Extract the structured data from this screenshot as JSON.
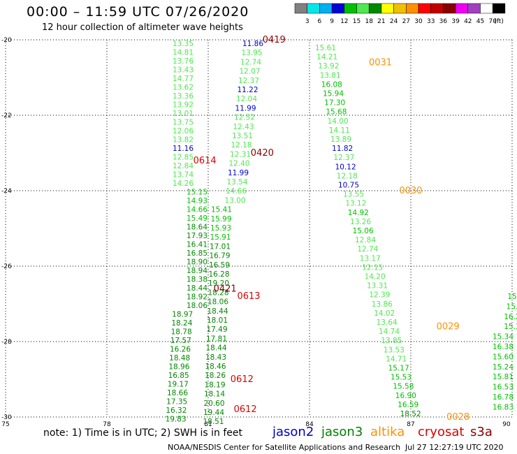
{
  "header": {
    "title": "00:00 – 11:59 UTC 07/26/2020",
    "subtitle": "12 hour collection of altimeter wave heights"
  },
  "color_scale": {
    "colors": [
      "#808080",
      "#00e8e8",
      "#00b0f0",
      "#0000d8",
      "#00c000",
      "#50e850",
      "#008800",
      "#ffff00",
      "#f0c000",
      "#ff9000",
      "#ff0000",
      "#c00000",
      "#880000",
      "#f000f0",
      "#a040c0",
      "#ffffff",
      "#000000"
    ],
    "labels": [
      "3",
      "6",
      "9",
      "12",
      "15",
      "18",
      "21",
      "24",
      "27",
      "30",
      "33",
      "36",
      "39",
      "42",
      "45",
      "70"
    ],
    "unit": "(ft)"
  },
  "legend": {
    "jason2": {
      "label": "jason2",
      "color": "#0000cc"
    },
    "jason3": {
      "label": "jason3",
      "color": "#008000"
    },
    "altika": {
      "label": "altika",
      "color": "#ff9000"
    },
    "cryosat": {
      "label": "cryosat",
      "color": "#dd0000"
    },
    "s3a": {
      "label": "s3a",
      "color": "#880000"
    }
  },
  "note": "note: 1) Time is in UTC; 2) SWH is in feet",
  "footer": {
    "credit": "NOAA/NESDIS Center for Satellite Applications and Research",
    "generated": "Jul 27 12:27:19 UTC 2020"
  },
  "chart_data": {
    "type": "scatter",
    "title": "12 hour collection of altimeter wave heights",
    "x_ticks": [
      "75",
      "78",
      "81",
      "84",
      "87",
      "90"
    ],
    "y_ticks": [
      "-20",
      "-22",
      "-24",
      "-26",
      "-28",
      "-30"
    ],
    "xlim": [
      75,
      90
    ],
    "ylim": [
      -30,
      -20
    ],
    "grid": true,
    "colors": {
      "c2": "#0000cc",
      "c4": "#00c000",
      "c5": "#50e850",
      "c6": "#008800"
    },
    "passes": [
      {
        "lon": 80.4,
        "values": [
          [
            "13.35",
            "c5"
          ],
          [
            "14.81",
            "c5"
          ],
          [
            "13.76",
            "c5"
          ],
          [
            "13.43",
            "c5"
          ],
          [
            "14.77",
            "c5"
          ],
          [
            "13.62",
            "c5"
          ],
          [
            "13.36",
            "c5"
          ],
          [
            "13.92",
            "c5"
          ],
          [
            "13.01",
            "c5"
          ],
          [
            "13.75",
            "c5"
          ],
          [
            "12.06",
            "c5"
          ],
          [
            "13.82",
            "c5"
          ],
          [
            "11.16",
            "c2"
          ],
          [
            "12.85",
            "c5"
          ],
          [
            "12.84",
            "c5"
          ],
          [
            "13.74",
            "c5"
          ],
          [
            "14.26",
            "c5"
          ],
          [
            "15.15",
            "c4"
          ],
          [
            "14.93",
            "c4"
          ],
          [
            "14.66",
            "c4"
          ],
          [
            "15.49",
            "c4"
          ],
          [
            "18.64",
            "c6"
          ],
          [
            "17.93",
            "c6"
          ],
          [
            "16.41",
            "c6"
          ],
          [
            "16.85",
            "c6"
          ],
          [
            "18.90",
            "c6"
          ],
          [
            "18.94",
            "c6"
          ],
          [
            "18.38",
            "c6"
          ],
          [
            "18.44",
            "c6"
          ],
          [
            "18.92",
            "c6"
          ],
          [
            "18.06",
            "c6"
          ],
          [
            "18.97",
            "c6"
          ],
          [
            "18.24",
            "c6"
          ],
          [
            "18.78",
            "c6"
          ],
          [
            "17.57",
            "c6"
          ],
          [
            "16.26",
            "c6"
          ],
          [
            "18.48",
            "c6"
          ],
          [
            "18.96",
            "c6"
          ],
          [
            "16.85",
            "c6"
          ],
          [
            "19.17",
            "c6"
          ],
          [
            "18.66",
            "c6"
          ],
          [
            "17.35",
            "c6"
          ],
          [
            "16.32",
            "c6"
          ],
          [
            "19.83",
            "c6"
          ]
        ]
      },
      {
        "lon": 81.5,
        "values": [
          [
            "11.86",
            "c2"
          ],
          [
            "13.95",
            "c5"
          ],
          [
            "12.74",
            "c5"
          ],
          [
            "12.07",
            "c5"
          ],
          [
            "12.37",
            "c5"
          ],
          [
            "11.22",
            "c2"
          ],
          [
            "12.04",
            "c5"
          ],
          [
            "11.99",
            "c2"
          ],
          [
            "12.52",
            "c5"
          ],
          [
            "12.43",
            "c5"
          ],
          [
            "13.51",
            "c5"
          ],
          [
            "12.18",
            "c5"
          ],
          [
            "12.31",
            "c5"
          ],
          [
            "12.40",
            "c5"
          ],
          [
            "11.99",
            "c2"
          ],
          [
            "13.54",
            "c5"
          ],
          [
            "14.66",
            "c5"
          ],
          [
            "13.00",
            "c5"
          ],
          [
            "15.41",
            "c4"
          ],
          [
            "15.99",
            "c4"
          ],
          [
            "15.93",
            "c4"
          ],
          [
            "15.91",
            "c4"
          ],
          [
            "17.01",
            "c6"
          ],
          [
            "16.79",
            "c6"
          ],
          [
            "16.59",
            "c6"
          ],
          [
            "16.28",
            "c6"
          ],
          [
            "19.20",
            "c6"
          ],
          [
            "18.28",
            "c6"
          ],
          [
            "18.06",
            "c6"
          ],
          [
            "18.44",
            "c6"
          ],
          [
            "18.01",
            "c6"
          ],
          [
            "17.49",
            "c6"
          ],
          [
            "17.81",
            "c6"
          ],
          [
            "18.44",
            "c6"
          ],
          [
            "18.43",
            "c6"
          ],
          [
            "18.46",
            "c6"
          ],
          [
            "18.26",
            "c6"
          ],
          [
            "18.19",
            "c6"
          ],
          [
            "18.14",
            "c6"
          ],
          [
            "20.60",
            "c6"
          ],
          [
            "19.44",
            "c6"
          ],
          [
            "18.51",
            "c6"
          ]
        ]
      },
      {
        "lon": 84.9,
        "values": [
          [
            "15.61",
            "c5"
          ],
          [
            "14.21",
            "c5"
          ],
          [
            "13.92",
            "c5"
          ],
          [
            "13.81",
            "c5"
          ],
          [
            "16.08",
            "c4"
          ],
          [
            "15.94",
            "c4"
          ],
          [
            "17.30",
            "c4"
          ],
          [
            "15.68",
            "c4"
          ],
          [
            "14.00",
            "c5"
          ],
          [
            "14.11",
            "c5"
          ],
          [
            "13.89",
            "c5"
          ],
          [
            "11.82",
            "c2"
          ],
          [
            "12.37",
            "c5"
          ],
          [
            "10.12",
            "c2"
          ],
          [
            "12.18",
            "c5"
          ],
          [
            "10.75",
            "c2"
          ],
          [
            "13.55",
            "c5"
          ],
          [
            "13.12",
            "c5"
          ],
          [
            "14.92",
            "c4"
          ],
          [
            "13.26",
            "c5"
          ],
          [
            "15.06",
            "c4"
          ],
          [
            "12.84",
            "c5"
          ],
          [
            "12.74",
            "c5"
          ],
          [
            "13.17",
            "c5"
          ],
          [
            "12.15",
            "c5"
          ],
          [
            "14.20",
            "c5"
          ],
          [
            "13.31",
            "c5"
          ],
          [
            "12.39",
            "c5"
          ],
          [
            "13.86",
            "c5"
          ],
          [
            "14.02",
            "c5"
          ],
          [
            "13.64",
            "c5"
          ],
          [
            "14.74",
            "c5"
          ],
          [
            "13.85",
            "c5"
          ],
          [
            "13.53",
            "c5"
          ],
          [
            "14.71",
            "c5"
          ],
          [
            "15.17",
            "c4"
          ],
          [
            "15.53",
            "c4"
          ],
          [
            "15.58",
            "c4"
          ],
          [
            "16.90",
            "c4"
          ],
          [
            "16.59",
            "c4"
          ],
          [
            "18.52",
            "c6"
          ]
        ]
      },
      {
        "lon": 89.8,
        "values": [
          [
            "15",
            "c4"
          ],
          [
            "15.",
            "c4"
          ],
          [
            "16.2",
            "c4"
          ],
          [
            "15.3",
            "c4"
          ],
          [
            "15.34",
            "c4"
          ],
          [
            "16.38",
            "c4"
          ],
          [
            "15.60",
            "c4"
          ],
          [
            "15.24",
            "c4"
          ],
          [
            "15.81",
            "c4"
          ],
          [
            "16.53",
            "c4"
          ],
          [
            "16.78",
            "c4"
          ],
          [
            "16.83",
            "c4"
          ]
        ]
      }
    ],
    "pass_labels": [
      {
        "text": "0419",
        "sat": "s3a",
        "lon": 82.95,
        "lat": -20.0
      },
      {
        "text": "0031",
        "sat": "altika",
        "lon": 86.1,
        "lat": -20.6
      },
      {
        "text": "0420",
        "sat": "s3a",
        "lon": 82.6,
        "lat": -23.0
      },
      {
        "text": "0614",
        "sat": "cryosat",
        "lon": 80.9,
        "lat": -23.2
      },
      {
        "text": "0030",
        "sat": "altika",
        "lon": 87.0,
        "lat": -24.0
      },
      {
        "text": "0421",
        "sat": "s3a",
        "lon": 81.5,
        "lat": -26.6
      },
      {
        "text": "0613",
        "sat": "cryosat",
        "lon": 82.2,
        "lat": -26.8
      },
      {
        "text": "0029",
        "sat": "altika",
        "lon": 88.1,
        "lat": -27.6
      },
      {
        "text": "0612",
        "sat": "cryosat",
        "lon": 82.0,
        "lat": -29.0
      },
      {
        "text": "0612",
        "sat": "cryosat",
        "lon": 82.1,
        "lat": -29.8
      },
      {
        "text": "0028",
        "sat": "altika",
        "lon": 88.4,
        "lat": -30.0
      }
    ]
  }
}
